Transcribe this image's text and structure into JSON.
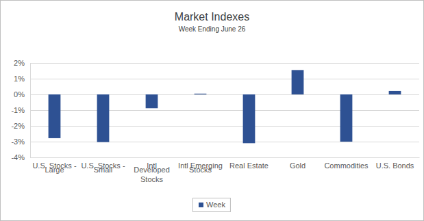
{
  "chart_data": {
    "type": "bar",
    "title": "Market Indexes",
    "subtitle": "Week Ending June 26",
    "categories": [
      "U.S. Stocks - Large",
      "U.S. Stocks - Small",
      "Intl Developed Stocks",
      "Intl Emerging Stocks",
      "Real Estate",
      "Gold",
      "Commodities",
      "U.S. Bonds"
    ],
    "series": [
      {
        "name": "Week",
        "color": "#2e5193",
        "values": [
          -2.78,
          -3.03,
          -0.88,
          0.05,
          -3.1,
          1.55,
          -3.0,
          0.22
        ]
      }
    ],
    "ylim": [
      -4,
      2
    ],
    "yticks": [
      {
        "value": -4,
        "label": "-4%"
      },
      {
        "value": -3,
        "label": "-3%"
      },
      {
        "value": -2,
        "label": "-2%"
      },
      {
        "value": -1,
        "label": "-1%"
      },
      {
        "value": 0,
        "label": "0%"
      },
      {
        "value": 1,
        "label": "1%"
      },
      {
        "value": 2,
        "label": "2%"
      }
    ],
    "grid": true,
    "legend": "bottom"
  }
}
